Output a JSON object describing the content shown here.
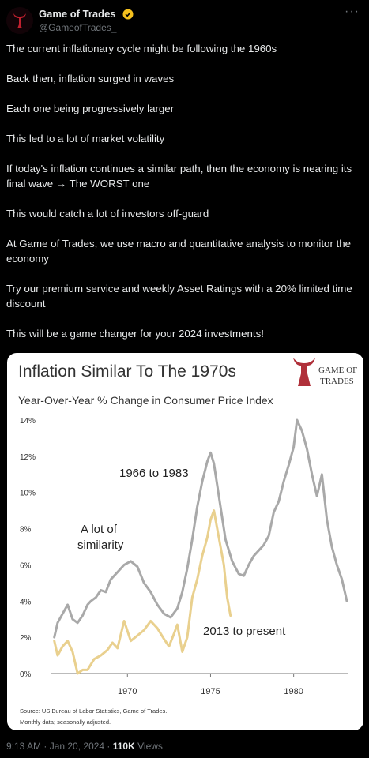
{
  "author": {
    "display_name": "Game of Trades",
    "handle": "@GameofTrades_"
  },
  "tweet": {
    "paragraphs": [
      "The current inflationary cycle might be following the 1960s",
      "Back then, inflation surged in waves",
      "Each one being progressively larger",
      "This led to a lot of market volatility",
      "If today's inflation continues a similar path, then the economy is nearing its final wave → The WORST one",
      "This would catch a lot of investors off-guard",
      "At Game of Trades, we use macro and quantitative analysis to monitor the economy",
      "Try our premium service and weekly Asset Ratings with a 20% limited time discount",
      "This will be a game changer for your 2024 investments!"
    ]
  },
  "meta": {
    "time": "9:13 AM · Jan 20, 2024 · ",
    "views_count": "110K",
    "views_label": " Views"
  },
  "colors": {
    "gray_series": "#a9a9a9",
    "gold_series": "#e9d08e",
    "verified": "#f4c01e"
  },
  "chart_data": {
    "type": "line",
    "title": "Inflation Similar To The 1970s",
    "subtitle": "Year-Over-Year % Change in Consumer Price Index",
    "logo_text": [
      "GAME OF",
      "TRADES"
    ],
    "y_ticks": [
      "14%",
      "12%",
      "10%",
      "8%",
      "6%",
      "4%",
      "2%",
      "0%"
    ],
    "y_tick_values": [
      14,
      12,
      10,
      8,
      6,
      4,
      2,
      0
    ],
    "x_ticks": [
      "1970",
      "1975",
      "1980"
    ],
    "x_tick_values": [
      1970,
      1975,
      1980
    ],
    "xlim": [
      1964.9,
      1984.2
    ],
    "ylim": [
      0,
      14
    ],
    "annotations": {
      "gray": "1966 to 1983",
      "similarity_line1": "A lot of",
      "similarity_line2": "similarity",
      "gold": "2013 to present"
    },
    "source_line1": "Source: US Bureau of Labor Statistics, Game of Trades.",
    "source_line2": "Monthly data; seasonally adjusted.",
    "series": [
      {
        "name": "1966 to 1983",
        "x": [
          1965.6,
          1965.8,
          1966.1,
          1966.4,
          1966.7,
          1967.0,
          1967.3,
          1967.6,
          1967.8,
          1968.1,
          1968.4,
          1968.7,
          1969.0,
          1969.4,
          1969.8,
          1970.2,
          1970.6,
          1971.0,
          1971.4,
          1971.8,
          1972.2,
          1972.6,
          1973.0,
          1973.3,
          1973.6,
          1973.9,
          1974.2,
          1974.5,
          1974.8,
          1975.0,
          1975.2,
          1975.5,
          1975.9,
          1976.3,
          1976.7,
          1977.0,
          1977.3,
          1977.6,
          1977.9,
          1978.2,
          1978.5,
          1978.8,
          1979.1,
          1979.4,
          1979.7,
          1980.0,
          1980.2,
          1980.5,
          1980.8,
          1981.1,
          1981.4,
          1981.7,
          1982.0,
          1982.3,
          1982.6,
          1982.9,
          1983.2
        ],
        "values": [
          2.0,
          2.8,
          3.3,
          3.8,
          3.0,
          2.8,
          3.2,
          3.8,
          4.0,
          4.2,
          4.6,
          4.5,
          5.2,
          5.6,
          6.0,
          6.2,
          5.9,
          5.0,
          4.5,
          3.8,
          3.3,
          3.1,
          3.6,
          4.5,
          5.8,
          7.4,
          9.2,
          10.6,
          11.7,
          12.2,
          11.6,
          9.8,
          7.4,
          6.2,
          5.5,
          5.4,
          6.0,
          6.5,
          6.8,
          7.1,
          7.6,
          8.9,
          9.5,
          10.6,
          11.5,
          12.5,
          14.0,
          13.4,
          12.4,
          11.0,
          9.8,
          11.0,
          8.5,
          7.0,
          6.0,
          5.2,
          4.0
        ]
      },
      {
        "name": "2013 to present",
        "x": [
          1965.6,
          1965.8,
          1966.1,
          1966.4,
          1966.7,
          1967.0,
          1967.3,
          1967.6,
          1968.0,
          1968.4,
          1968.8,
          1969.1,
          1969.4,
          1969.8,
          1970.2,
          1970.6,
          1971.0,
          1971.4,
          1971.8,
          1972.2,
          1972.5,
          1972.8,
          1973.0,
          1973.3,
          1973.6,
          1973.9,
          1974.2,
          1974.5,
          1974.8,
          1975.0,
          1975.2,
          1975.5,
          1975.8,
          1976.0,
          1976.2
        ],
        "values": [
          1.8,
          1.0,
          1.5,
          1.8,
          1.2,
          0.0,
          0.2,
          0.2,
          0.8,
          1.0,
          1.3,
          1.7,
          1.4,
          2.9,
          1.8,
          2.1,
          2.4,
          2.9,
          2.5,
          1.9,
          1.5,
          2.2,
          2.7,
          1.2,
          2.0,
          4.2,
          5.2,
          6.5,
          7.5,
          8.5,
          9.0,
          7.5,
          6.0,
          4.2,
          3.2
        ]
      }
    ]
  }
}
